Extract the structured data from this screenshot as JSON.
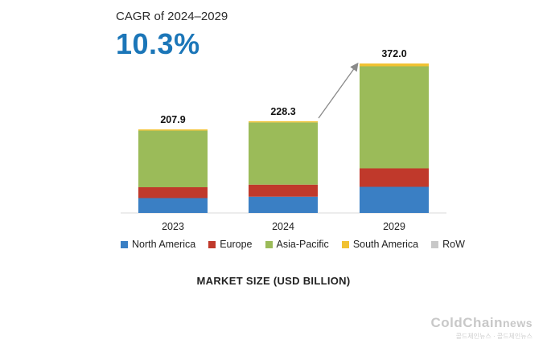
{
  "header": {
    "cagr_label": "CAGR of 2024–2029",
    "cagr_value": "10.3%"
  },
  "colors": {
    "north_america": "#3a7fc4",
    "europe": "#c0392b",
    "asia_pacific": "#9bbb59",
    "south_america": "#f1c232",
    "row": "#c8c8c8",
    "cagr_accent": "#1b76b8"
  },
  "chart_data": {
    "type": "bar",
    "stacked": true,
    "categories": [
      "2023",
      "2024",
      "2029"
    ],
    "totals": [
      "207.9",
      "228.3",
      "372.0"
    ],
    "series": [
      {
        "name": "North America",
        "values": [
          37.0,
          40.5,
          65.0
        ]
      },
      {
        "name": "Europe",
        "values": [
          27.0,
          30.0,
          46.0
        ]
      },
      {
        "name": "Asia-Pacific",
        "values": [
          140.9,
          154.8,
          254.0
        ]
      },
      {
        "name": "South America",
        "values": [
          3.0,
          3.0,
          7.0
        ]
      },
      {
        "name": "RoW",
        "values": [
          0.0,
          0.0,
          0.0
        ]
      }
    ],
    "xlabel": "MARKET SIZE (USD BILLION)",
    "ylim": [
      0,
      380
    ],
    "grid": false,
    "legend": "bottom"
  },
  "watermark": {
    "brand": "ColdChain",
    "brand_suffix": "news",
    "tagline": "콜드체인뉴스 · 콜드체인뉴스"
  }
}
